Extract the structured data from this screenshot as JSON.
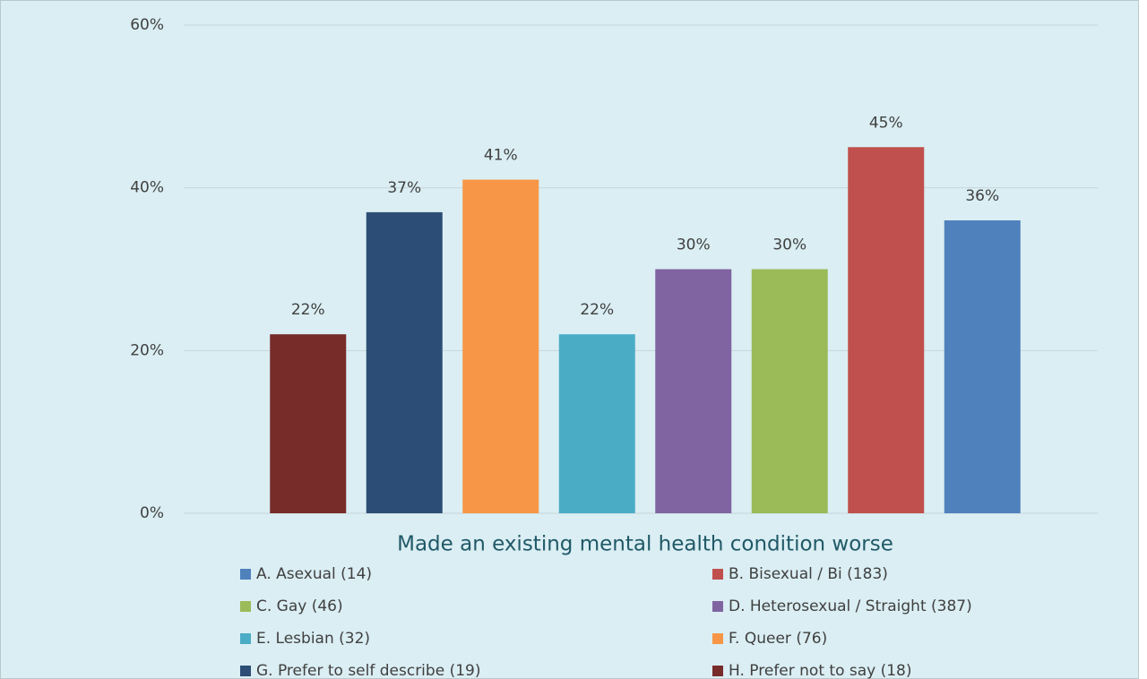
{
  "chart_data": {
    "type": "bar",
    "categories": [
      "Made an existing mental health condition worse"
    ],
    "series": [
      {
        "name": "A. Asexual (14)",
        "color": "#4f81bd",
        "values": [
          36
        ],
        "value_labels": [
          "36%"
        ]
      },
      {
        "name": "B. Bisexual / Bi (183)",
        "color": "#c0504d",
        "values": [
          45
        ],
        "value_labels": [
          "45%"
        ]
      },
      {
        "name": "C. Gay (46)",
        "color": "#9bbb59",
        "values": [
          30
        ],
        "value_labels": [
          "30%"
        ]
      },
      {
        "name": "D. Heterosexual / Straight (387)",
        "color": "#8064a2",
        "values": [
          30
        ],
        "value_labels": [
          "30%"
        ]
      },
      {
        "name": "E. Lesbian (32)",
        "color": "#4bacc6",
        "values": [
          22
        ],
        "value_labels": [
          "22%"
        ]
      },
      {
        "name": "F. Queer (76)",
        "color": "#f79646",
        "values": [
          41
        ],
        "value_labels": [
          "41%"
        ]
      },
      {
        "name": "G. Prefer to self describe (19)",
        "color": "#2c4d75",
        "values": [
          37
        ],
        "value_labels": [
          "37%"
        ]
      },
      {
        "name": "H. Prefer not to say (18)",
        "color": "#772c2a",
        "values": [
          22
        ],
        "value_labels": [
          "22%"
        ]
      }
    ],
    "ylim": [
      0,
      60
    ],
    "yticks": [
      {
        "value": 0,
        "label": "0%"
      },
      {
        "value": 20,
        "label": "20%"
      },
      {
        "value": 40,
        "label": "40%"
      },
      {
        "value": 60,
        "label": "60%"
      }
    ],
    "grid": true
  }
}
